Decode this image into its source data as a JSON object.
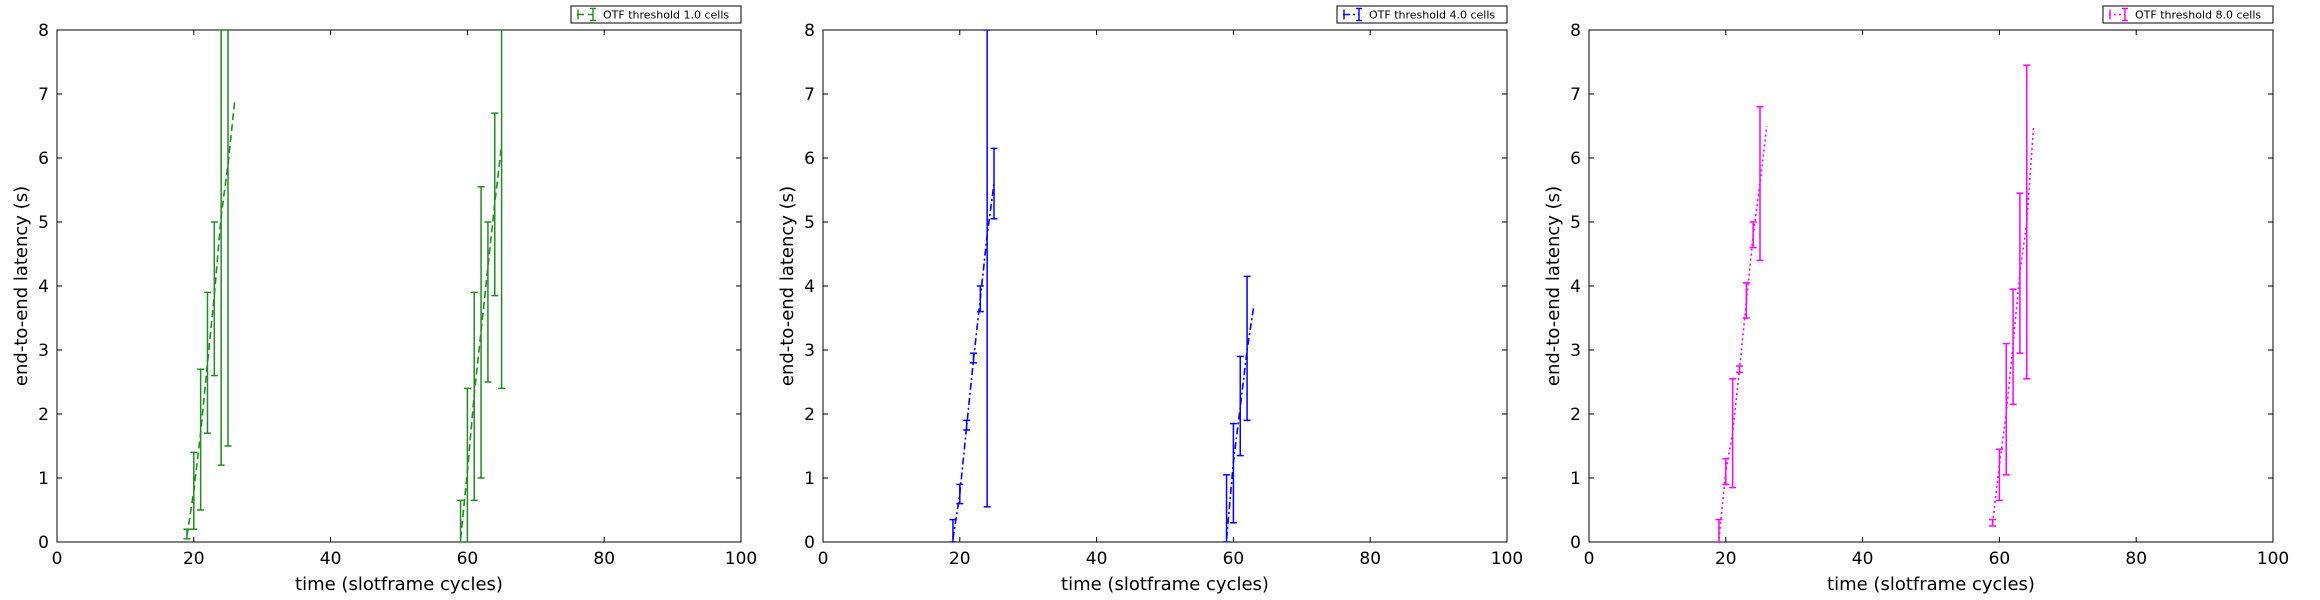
{
  "chart_data": [
    {
      "type": "line",
      "error_bars": true,
      "xlabel": "time (slotframe cycles)",
      "ylabel": "end-to-end latency (s)",
      "xlim": [
        0,
        100
      ],
      "ylim": [
        0,
        8
      ],
      "xticks": [
        "0",
        "20",
        "40",
        "60",
        "80",
        "100"
      ],
      "yticks": [
        "0",
        "1",
        "2",
        "3",
        "4",
        "5",
        "6",
        "7",
        "8"
      ],
      "legend": {
        "label": "OTF threshold 1.0 cells",
        "placement": "top-right"
      },
      "color": "#228B22",
      "linestyle": "dashed",
      "series": [
        {
          "x": [
            19,
            20,
            21,
            22,
            23,
            24,
            25,
            26
          ],
          "y": [
            0.1,
            0.8,
            1.7,
            2.8,
            3.85,
            5.1,
            5.9,
            6.9
          ],
          "err_low": [
            0.05,
            0.6,
            1.2,
            1.1,
            1.25,
            3.9,
            4.4,
            null
          ],
          "err_high": [
            0.1,
            0.6,
            1.0,
            1.1,
            1.15,
            2.9,
            2.1,
            null
          ]
        },
        {
          "x": [
            59,
            60,
            61,
            62,
            63,
            64,
            65
          ],
          "y": [
            0.05,
            1.1,
            2.3,
            3.3,
            4.3,
            5.3,
            6.2
          ],
          "err_low": [
            0.05,
            1.1,
            1.65,
            2.3,
            1.8,
            1.45,
            3.8
          ],
          "err_high": [
            0.6,
            1.3,
            1.6,
            2.25,
            0.7,
            1.4,
            1.8
          ]
        }
      ]
    },
    {
      "type": "line",
      "error_bars": true,
      "xlabel": "time (slotframe cycles)",
      "ylabel": "end-to-end latency (s)",
      "xlim": [
        0,
        100
      ],
      "ylim": [
        0,
        8
      ],
      "xticks": [
        "0",
        "20",
        "40",
        "60",
        "80",
        "100"
      ],
      "yticks": [
        "0",
        "1",
        "2",
        "3",
        "4",
        "5",
        "6",
        "7",
        "8"
      ],
      "legend": {
        "label": "OTF threshold 4.0 cells",
        "placement": "top-right"
      },
      "color": "#0000FF",
      "linestyle": "dashdot",
      "series": [
        {
          "x": [
            19,
            20,
            21,
            22,
            23,
            24,
            25
          ],
          "y": [
            0.05,
            0.75,
            1.8,
            2.85,
            3.8,
            4.8,
            5.6
          ],
          "err_low": [
            0.05,
            0.15,
            0.05,
            0.05,
            0.2,
            4.25,
            0.55
          ],
          "err_high": [
            0.3,
            0.15,
            0.1,
            0.1,
            0.2,
            3.2,
            0.55
          ]
        },
        {
          "x": [
            59,
            60,
            61,
            62,
            63
          ],
          "y": [
            0.05,
            1.25,
            2.1,
            3.0,
            3.7
          ],
          "err_low": [
            0.05,
            0.95,
            0.75,
            1.1,
            null
          ],
          "err_high": [
            1.0,
            0.6,
            0.8,
            1.15,
            null
          ]
        }
      ]
    },
    {
      "type": "line",
      "error_bars": true,
      "xlabel": "time (slotframe cycles)",
      "ylabel": "end-to-end latency (s)",
      "xlim": [
        0,
        100
      ],
      "ylim": [
        0,
        8
      ],
      "xticks": [
        "0",
        "20",
        "40",
        "60",
        "80",
        "100"
      ],
      "yticks": [
        "0",
        "1",
        "2",
        "3",
        "4",
        "5",
        "6",
        "7",
        "8"
      ],
      "legend": {
        "label": "OTF threshold 8.0 cells",
        "placement": "top-right"
      },
      "color": "#FF00FF",
      "linestyle": "dotted",
      "series": [
        {
          "x": [
            19,
            20,
            21,
            22,
            23,
            24,
            25,
            26
          ],
          "y": [
            0.05,
            1.1,
            1.7,
            2.7,
            3.75,
            4.8,
            5.6,
            6.5
          ],
          "err_low": [
            0.05,
            0.2,
            0.85,
            0.05,
            0.25,
            0.2,
            1.2,
            null
          ],
          "err_high": [
            0.3,
            0.2,
            0.85,
            0.05,
            0.3,
            0.2,
            1.2,
            null
          ]
        },
        {
          "x": [
            59,
            60,
            61,
            62,
            63,
            64,
            65
          ],
          "y": [
            0.3,
            1.2,
            2.0,
            3.1,
            4.2,
            5.0,
            6.5
          ],
          "err_low": [
            0.05,
            0.55,
            0.95,
            0.95,
            1.25,
            2.45,
            null
          ],
          "err_high": [
            0.05,
            0.25,
            1.1,
            0.85,
            1.25,
            2.45,
            null
          ]
        }
      ]
    }
  ]
}
